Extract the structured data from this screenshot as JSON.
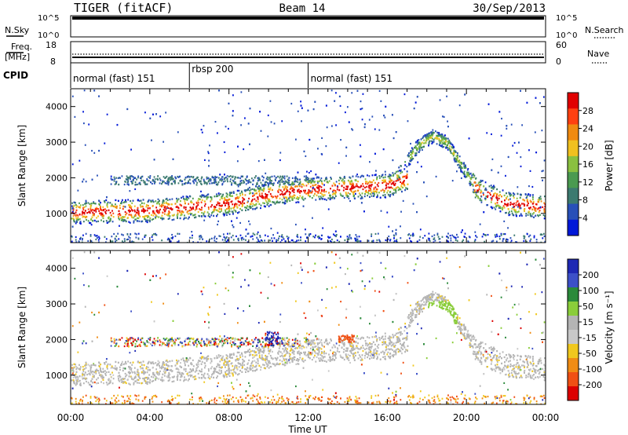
{
  "header": {
    "radar": "TIGER (fitACF)",
    "beam": "Beam 14",
    "date": "30/Sep/2013"
  },
  "strip_nsky": {
    "left_label": "N.Sky",
    "right_label": "N.Search",
    "ticks_left": [
      "10^5",
      "10^0"
    ],
    "ticks_right": [
      "10^5",
      "10^0"
    ]
  },
  "strip_freq": {
    "left_label_1": "Freq.",
    "left_label_2": "[MHz]",
    "right_label": "Nave",
    "ticks_left": [
      "18",
      "8"
    ],
    "ticks_right": [
      "60",
      "0"
    ]
  },
  "cpid": {
    "label": "CPID",
    "segments": [
      {
        "label": "normal (fast) 151",
        "start_h": 0,
        "end_h": 6
      },
      {
        "label": "rbsp 200",
        "start_h": 6,
        "end_h": 12
      },
      {
        "label": "normal (fast) 151",
        "start_h": 12,
        "end_h": 24
      }
    ]
  },
  "colors": {
    "power_scale": [
      "#0018d8",
      "#2850b8",
      "#3c7a70",
      "#4a9a50",
      "#8ac040",
      "#f0c020",
      "#f08a10",
      "#ff4010",
      "#e00000"
    ],
    "velocity_scale": [
      "#1e28b4",
      "#3c50c8",
      "#2a8a3a",
      "#8acd3a",
      "#b4b4b4",
      "#c8c8c8",
      "#f0c81e",
      "#f08c14",
      "#f05014",
      "#dc0000"
    ]
  },
  "chart_data": [
    {
      "type": "heatmap",
      "title": "Power",
      "xlabel": "",
      "ylabel": "Slant Range [km]",
      "xlim": [
        0,
        24
      ],
      "ylim": [
        180,
        4500
      ],
      "yticks": [
        "1000",
        "2000",
        "3000",
        "4000"
      ],
      "colorbar": {
        "label": "Power [dB]",
        "ticks": [
          "28",
          "24",
          "20",
          "16",
          "12",
          "8",
          "4"
        ],
        "range": [
          0,
          30
        ]
      },
      "features": [
        {
          "name": "main band",
          "x_h": [
            0,
            4,
            8,
            10,
            12,
            14,
            16,
            17
          ],
          "range_km": [
            1050,
            1100,
            1300,
            1550,
            1700,
            1750,
            1800,
            2000
          ]
        },
        {
          "name": "ionospheric arc",
          "x_h": [
            16.5,
            17.5,
            18.3,
            19,
            19.8,
            20.5,
            22,
            24
          ],
          "range_km": [
            2100,
            2900,
            3200,
            3000,
            2300,
            1700,
            1300,
            1200
          ]
        }
      ]
    },
    {
      "type": "heatmap",
      "title": "Velocity",
      "xlabel": "Time UT",
      "ylabel": "Slant Range [km]",
      "xlim": [
        0,
        24
      ],
      "ylim": [
        180,
        4500
      ],
      "xticks": [
        "00:00",
        "04:00",
        "08:00",
        "12:00",
        "16:00",
        "20:00",
        "00:00"
      ],
      "yticks": [
        "1000",
        "2000",
        "3000",
        "4000"
      ],
      "colorbar": {
        "label": "Velocity [m s⁻¹]",
        "ticks": [
          "200",
          "100",
          "50",
          "15",
          "-15",
          "-50",
          "-100",
          "-200"
        ],
        "range": [
          -250,
          250
        ]
      }
    }
  ]
}
